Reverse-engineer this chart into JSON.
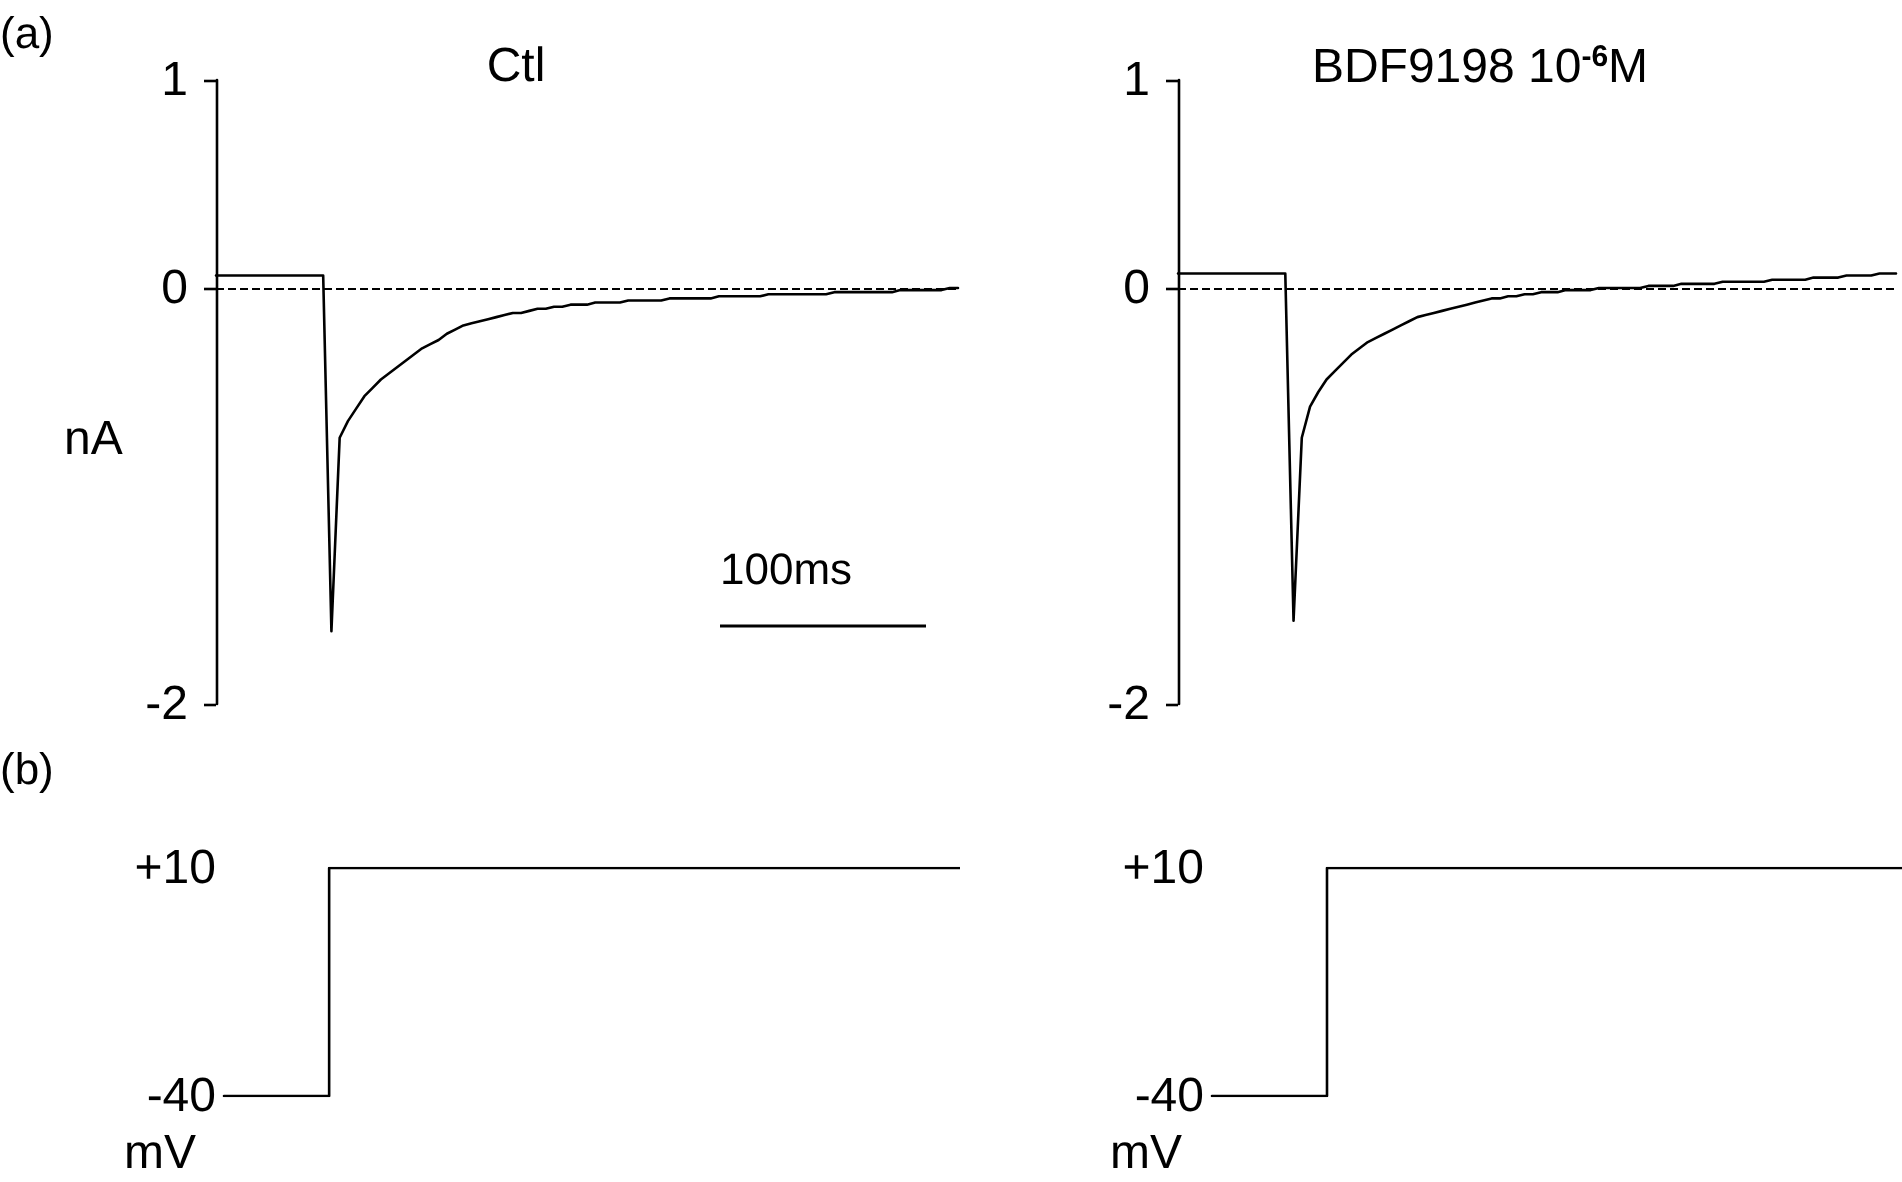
{
  "chart_data": [
    {
      "type": "line",
      "title": "Ctl",
      "ylabel": "nA",
      "annotations": [
        "(a)",
        "100ms"
      ],
      "categories": [
        null,
        null,
        null,
        null,
        null,
        null,
        null,
        null,
        null,
        null,
        null,
        null,
        null,
        null,
        null,
        null,
        null,
        null,
        null,
        null,
        null,
        null,
        null,
        null,
        null,
        null,
        null,
        null,
        null,
        null,
        null,
        null,
        null,
        null,
        null,
        null,
        null,
        null,
        null,
        null,
        null,
        null,
        null,
        null,
        null,
        null,
        null,
        null,
        null,
        null,
        null,
        null,
        null,
        null,
        null,
        null,
        null,
        null,
        null,
        null,
        null,
        null,
        null,
        null,
        null,
        null,
        null,
        null,
        null,
        null,
        null,
        null,
        null,
        null,
        null,
        null,
        null,
        null,
        null,
        null,
        null,
        null,
        null,
        null,
        null,
        null,
        null,
        null,
        null,
        null,
        null
      ],
      "series": [
        {
          "color": "#000000",
          "values": [
            0.06,
            0.06,
            0.06,
            0.06,
            0.06,
            0.06,
            0.06,
            0.06,
            0.06,
            0.06,
            0.06,
            0.06,
            0.06,
            0.06,
            -1.65,
            -0.72,
            -0.64,
            -0.58,
            -0.52,
            -0.48,
            -0.44,
            -0.41,
            -0.38,
            -0.35,
            -0.32,
            -0.29,
            -0.27,
            -0.25,
            -0.22,
            -0.2,
            -0.18,
            -0.17,
            -0.16,
            -0.15,
            -0.14,
            -0.13,
            -0.12,
            -0.12,
            -0.11,
            -0.1,
            -0.1,
            -0.09,
            -0.09,
            -0.08,
            -0.08,
            -0.08,
            -0.07,
            -0.07,
            -0.07,
            -0.07,
            -0.06,
            -0.06,
            -0.06,
            -0.06,
            -0.06,
            -0.05,
            -0.05,
            -0.05,
            -0.05,
            -0.05,
            -0.05,
            -0.04,
            -0.04,
            -0.04,
            -0.04,
            -0.04,
            -0.04,
            -0.03,
            -0.03,
            -0.03,
            -0.03,
            -0.03,
            -0.03,
            -0.03,
            -0.03,
            -0.02,
            -0.02,
            -0.02,
            -0.02,
            -0.02,
            -0.02,
            -0.02,
            -0.02,
            -0.01,
            -0.01,
            -0.01,
            -0.01,
            -0.01,
            -0.01,
            0,
            0
          ]
        }
      ],
      "ylim": [
        -2,
        1
      ],
      "yticks": [
        -2,
        0,
        1
      ],
      "tick_labels": "y",
      "marker": "none",
      "line_style": "solid",
      "ref_lines": [
        {
          "axis": "y",
          "value": 0,
          "color": "#000000",
          "line_style": "dashed"
        }
      ]
    },
    {
      "type": "line",
      "title": "BDF9198 10$^{-6}$M",
      "categories": [
        null,
        null,
        null,
        null,
        null,
        null,
        null,
        null,
        null,
        null,
        null,
        null,
        null,
        null,
        null,
        null,
        null,
        null,
        null,
        null,
        null,
        null,
        null,
        null,
        null,
        null,
        null,
        null,
        null,
        null,
        null,
        null,
        null,
        null,
        null,
        null,
        null,
        null,
        null,
        null,
        null,
        null,
        null,
        null,
        null,
        null,
        null,
        null,
        null,
        null,
        null,
        null,
        null,
        null,
        null,
        null,
        null,
        null,
        null,
        null,
        null,
        null,
        null,
        null,
        null,
        null,
        null,
        null,
        null,
        null,
        null,
        null,
        null,
        null,
        null,
        null,
        null,
        null,
        null,
        null,
        null,
        null,
        null,
        null,
        null,
        null,
        null,
        null
      ],
      "series": [
        {
          "color": "#000000",
          "values": [
            0.07,
            0.07,
            0.07,
            0.07,
            0.07,
            0.07,
            0.07,
            0.07,
            0.07,
            0.07,
            0.07,
            0.07,
            0.07,
            0.07,
            -1.6,
            -0.72,
            -0.57,
            -0.5,
            -0.44,
            -0.4,
            -0.36,
            -0.32,
            -0.29,
            -0.26,
            -0.24,
            -0.22,
            -0.2,
            -0.18,
            -0.16,
            -0.14,
            -0.13,
            -0.12,
            -0.11,
            -0.1,
            -0.09,
            -0.08,
            -0.07,
            -0.06,
            -0.05,
            -0.05,
            -0.04,
            -0.04,
            -0.03,
            -0.03,
            -0.02,
            -0.02,
            -0.02,
            -0.01,
            -0.01,
            -0.01,
            -0.01,
            0,
            0,
            0,
            0,
            0,
            0,
            0.01,
            0.01,
            0.01,
            0.01,
            0.02,
            0.02,
            0.02,
            0.02,
            0.02,
            0.03,
            0.03,
            0.03,
            0.03,
            0.03,
            0.03,
            0.04,
            0.04,
            0.04,
            0.04,
            0.04,
            0.05,
            0.05,
            0.05,
            0.05,
            0.06,
            0.06,
            0.06,
            0.06,
            0.07,
            0.07,
            0.07
          ]
        }
      ],
      "ylim": [
        -2,
        1
      ],
      "yticks": [
        -2,
        0,
        1
      ],
      "tick_labels": "y",
      "marker": "none",
      "line_style": "solid",
      "ref_lines": [
        {
          "axis": "y",
          "value": 0,
          "color": "#000000",
          "line_style": "dashed"
        }
      ]
    },
    {
      "type": "step",
      "ylabel": "mV",
      "annotations": [
        "(b)"
      ],
      "categories": [
        null,
        null,
        null,
        null,
        null,
        null,
        null,
        null
      ],
      "series": [
        {
          "color": "#000000",
          "values": [
            -40,
            10,
            10,
            10,
            10,
            10,
            10,
            10
          ]
        }
      ],
      "ylim": [
        -40,
        10
      ],
      "yticks": [
        -40,
        {
          "value": 10,
          "label": "+10"
        }
      ],
      "tick_labels": "y",
      "marker": "none",
      "line_style": "solid"
    },
    {
      "type": "step",
      "ylabel": "mV",
      "categories": [
        null,
        null,
        null,
        null,
        null,
        null,
        null
      ],
      "series": [
        {
          "color": "#000000",
          "values": [
            -40,
            10,
            10,
            10,
            10,
            10,
            10
          ]
        }
      ],
      "ylim": [
        -40,
        10
      ],
      "yticks": [
        -40,
        {
          "value": 10,
          "label": "+10"
        }
      ],
      "tick_labels": "y",
      "marker": "none",
      "line_style": "solid"
    }
  ]
}
